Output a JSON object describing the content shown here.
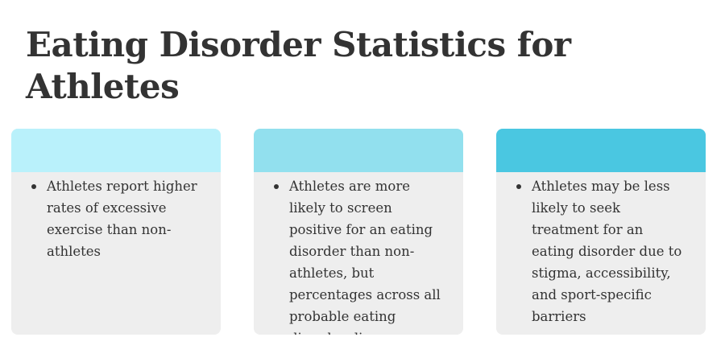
{
  "title": "Eating Disorder Statistics for Athletes",
  "cards": [
    {
      "header_color": "#b9f1fb",
      "text": "Athletes report higher rates of excessive exercise than non-athletes"
    },
    {
      "header_color": "#92e0ee",
      "text": "Athletes are more likely to screen positive for an eating disorder than non-athletes, but percentages across all probable eating disorder diagnoses are similar."
    },
    {
      "header_color": "#4ac7e1",
      "text": "Athletes may be less likely to seek treatment for an eating disorder due to stigma, accessibility, and sport-specific barriers"
    }
  ]
}
